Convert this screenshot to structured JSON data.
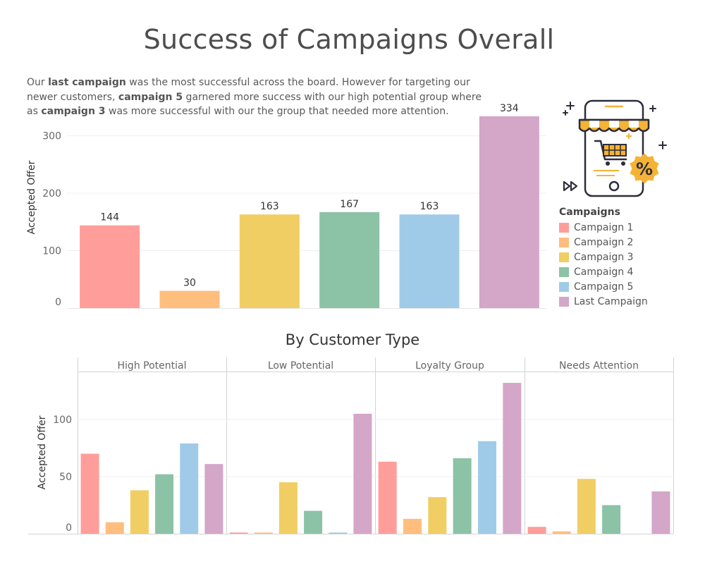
{
  "title": "Success of Campaigns Overall",
  "summary": {
    "p1": "Our ",
    "b1": "last campaign",
    "p2": " was the most successful across the board. However for targeting our newer customers, ",
    "b2": "campaign 5",
    "p3": " garnered more success with our high potential group where as ",
    "b3": "campaign 3",
    "p4": " was more successful with our the group that needed more attention."
  },
  "illustration": {
    "icon": "mobile-shop-discount-icon"
  },
  "legend": {
    "title": "Campaigns",
    "items": [
      {
        "label": "Campaign 1",
        "color": "#ff9d9a"
      },
      {
        "label": "Campaign 2",
        "color": "#ffbe7d"
      },
      {
        "label": "Campaign 3",
        "color": "#f1ce63"
      },
      {
        "label": "Campaign 4",
        "color": "#8cc2a6"
      },
      {
        "label": "Campaign 5",
        "color": "#a0cbe8"
      },
      {
        "label": "Last Campaign",
        "color": "#d4a6c8"
      }
    ]
  },
  "chart_data": [
    {
      "type": "bar",
      "title": "",
      "ylabel": "Accepted Offer",
      "xlabel": "",
      "categories": [
        "Campaign 1",
        "Campaign 2",
        "Campaign 3",
        "Campaign 4",
        "Campaign 5",
        "Last Campaign"
      ],
      "values": [
        144,
        30,
        163,
        167,
        163,
        334
      ],
      "data_labels": [
        "144",
        "30",
        "163",
        "167",
        "163",
        "334"
      ],
      "ylim": [
        0,
        340
      ],
      "yticks": [
        0,
        100,
        200,
        300
      ],
      "grid": true
    },
    {
      "type": "bar",
      "title": "By Customer Type",
      "ylabel": "Accepted Offer",
      "xlabel": "",
      "ylim": [
        0,
        137
      ],
      "yticks": [
        0,
        50,
        100
      ],
      "grid": true,
      "categories": [
        "Campaign 1",
        "Campaign 2",
        "Campaign 3",
        "Campaign 4",
        "Campaign 5",
        "Last Campaign"
      ],
      "panels": [
        {
          "name": "High Potential",
          "values": [
            70,
            10,
            38,
            52,
            79,
            61
          ]
        },
        {
          "name": "Low Potential",
          "values": [
            1,
            1,
            45,
            20,
            1,
            105
          ]
        },
        {
          "name": "Loyalty Group",
          "values": [
            63,
            13,
            32,
            66,
            81,
            132
          ]
        },
        {
          "name": "Needs Attention",
          "values": [
            6,
            2,
            48,
            25,
            0,
            37
          ]
        }
      ]
    }
  ]
}
